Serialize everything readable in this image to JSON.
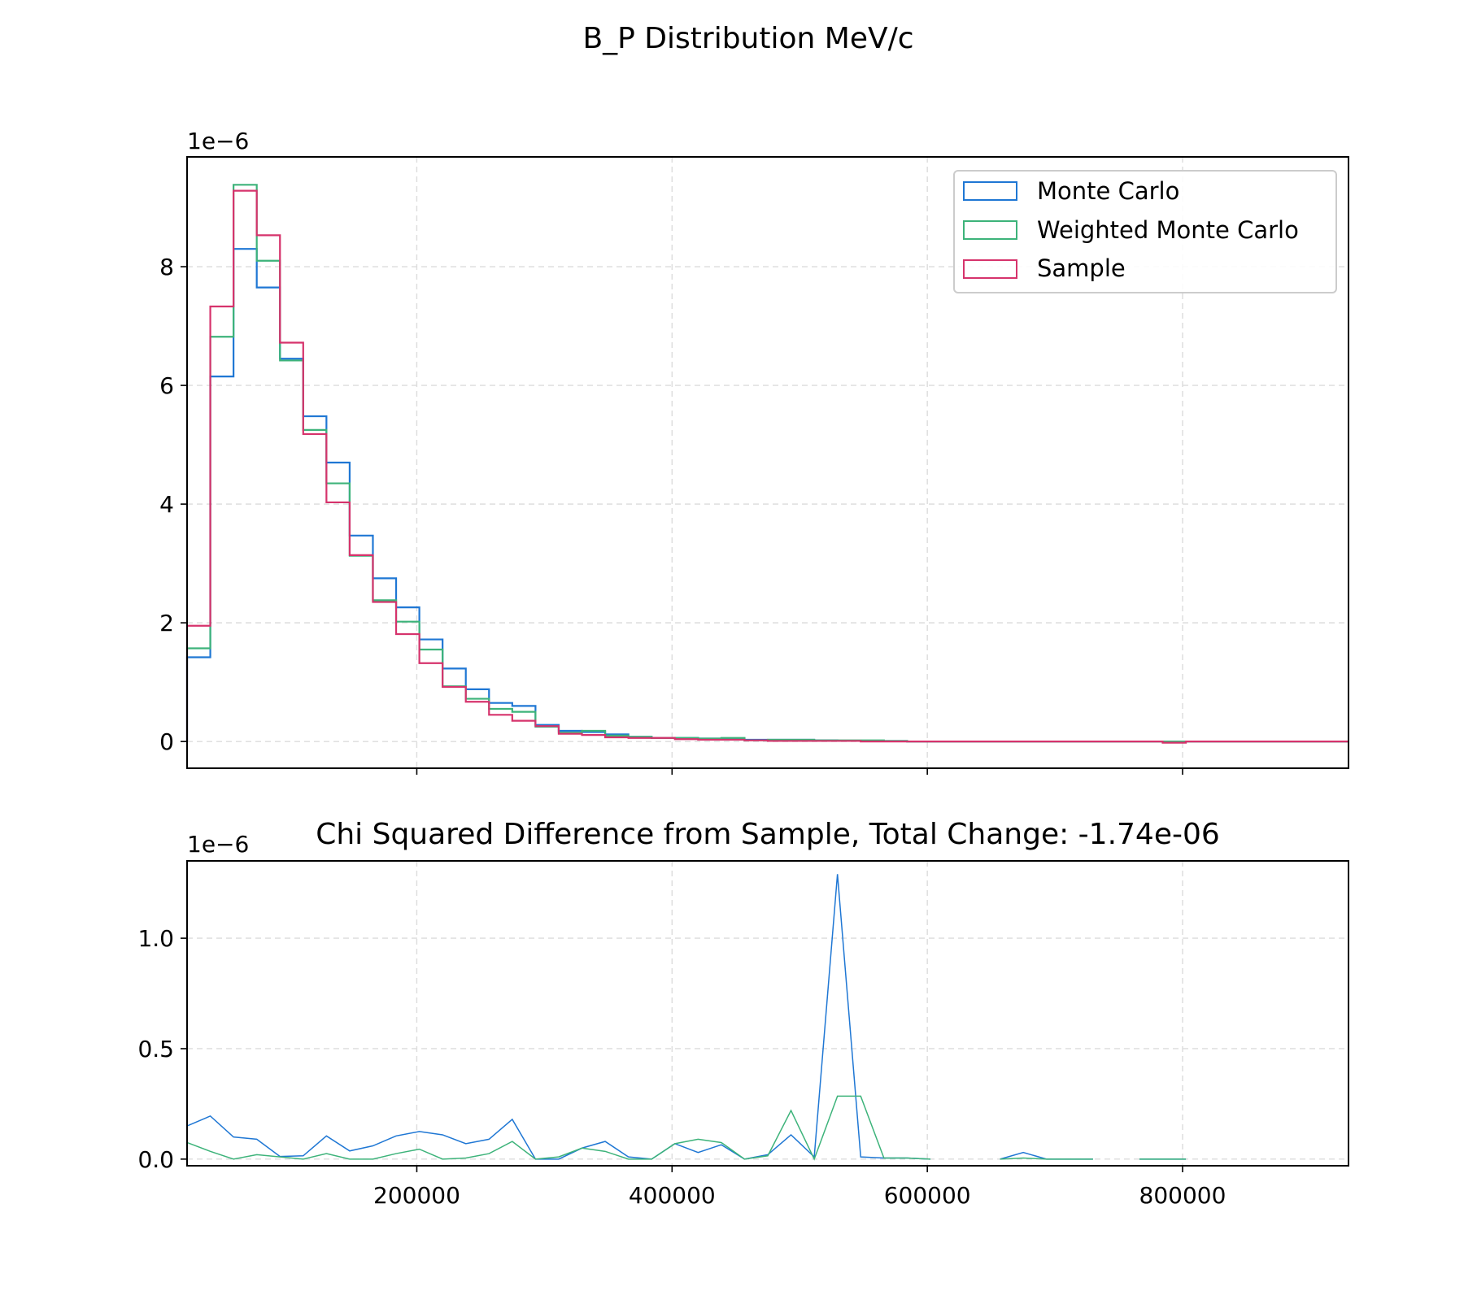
{
  "figure": {
    "suptitle": "B_P Distribution MeV/c"
  },
  "chart_data": [
    {
      "type": "step-histogram",
      "title": "",
      "xlabel": "",
      "ylabel": "",
      "y_multiplier_label": "1e−6",
      "xlim": [
        20000,
        930000
      ],
      "ylim": [
        -0.45,
        9.85
      ],
      "y_ticks": [
        "0",
        "2",
        "4",
        "6",
        "8"
      ],
      "x_tick_values": [
        200000,
        400000,
        600000,
        800000
      ],
      "grid": true,
      "legend_position": "top-right",
      "bin_edges": [
        20000,
        38200,
        56400,
        74600,
        92800,
        111000,
        129200,
        147400,
        165600,
        183800,
        202000,
        220200,
        238400,
        256600,
        274800,
        293000,
        311200,
        329400,
        347600,
        365800,
        384000,
        402200,
        420400,
        438600,
        456800,
        475000,
        493200,
        511400,
        529600,
        547800,
        566000,
        584200,
        602400,
        620600,
        638800,
        657000,
        675200,
        693400,
        711600,
        729800,
        748000,
        766200,
        784400,
        802600,
        820800,
        839000,
        857200,
        875400,
        893600,
        911800,
        930000
      ],
      "series": [
        {
          "name": "Monte Carlo",
          "color": "#1f77d4",
          "values": [
            1.42,
            6.15,
            8.3,
            7.65,
            6.45,
            5.48,
            4.7,
            3.47,
            2.75,
            2.26,
            1.72,
            1.23,
            0.88,
            0.65,
            0.6,
            0.28,
            0.18,
            0.16,
            0.12,
            0.08,
            0.06,
            0.06,
            0.05,
            0.05,
            0.03,
            0.03,
            0.03,
            0.02,
            0.01,
            0.01,
            0.01,
            0.0,
            0.0,
            0.0,
            0.0,
            0.0,
            0.0,
            0.0,
            0.0,
            0.0,
            0.0,
            0.0,
            0.0,
            0.0,
            0.0,
            0.0,
            0.0,
            0.0,
            0.0,
            0.0
          ]
        },
        {
          "name": "Weighted Monte Carlo",
          "color": "#3db37a",
          "values": [
            1.57,
            6.82,
            9.38,
            8.1,
            6.42,
            5.25,
            4.35,
            3.13,
            2.38,
            2.02,
            1.55,
            0.93,
            0.72,
            0.55,
            0.5,
            0.25,
            0.15,
            0.18,
            0.1,
            0.08,
            0.06,
            0.06,
            0.05,
            0.06,
            0.02,
            0.03,
            0.03,
            0.02,
            0.02,
            0.02,
            0.01,
            0.0,
            0.0,
            0.0,
            0.0,
            0.0,
            0.0,
            0.0,
            0.0,
            0.0,
            0.0,
            0.0,
            0.0,
            0.0,
            0.0,
            0.0,
            0.0,
            0.0,
            0.0,
            0.0
          ]
        },
        {
          "name": "Sample",
          "color": "#d6336c",
          "values": [
            1.95,
            7.33,
            9.28,
            8.53,
            6.72,
            5.18,
            4.03,
            3.14,
            2.35,
            1.81,
            1.32,
            0.92,
            0.67,
            0.45,
            0.35,
            0.26,
            0.13,
            0.11,
            0.07,
            0.06,
            0.06,
            0.04,
            0.03,
            0.03,
            0.02,
            0.01,
            0.01,
            0.01,
            0.01,
            0.0,
            0.0,
            0.0,
            0.0,
            0.0,
            0.0,
            0.0,
            0.0,
            0.0,
            0.0,
            0.0,
            0.0,
            0.0,
            -0.02,
            0.0,
            0.0,
            0.0,
            0.0,
            0.0,
            0.0,
            0.0
          ]
        }
      ]
    },
    {
      "type": "line",
      "title": "Chi Squared Difference from Sample, Total Change: -1.74e-06",
      "xlabel": "",
      "ylabel": "",
      "y_multiplier_label": "1e−6",
      "xlim": [
        20000,
        930000
      ],
      "ylim": [
        -0.03,
        1.35
      ],
      "y_tick_values": [
        0.0,
        0.5,
        1.0
      ],
      "y_ticks": [
        "0.0",
        "0.5",
        "1.0"
      ],
      "x_tick_values": [
        200000,
        400000,
        600000,
        800000
      ],
      "x_ticks": [
        "200000",
        "400000",
        "600000",
        "800000"
      ],
      "grid": true,
      "series": [
        {
          "name": "Monte Carlo",
          "color": "#1f77d4",
          "points": [
            [
              [
                20000,
                0.15
              ],
              [
                38200,
                0.195
              ],
              [
                56400,
                0.1
              ],
              [
                74600,
                0.09
              ],
              [
                92800,
                0.012
              ],
              [
                111000,
                0.015
              ],
              [
                129200,
                0.105
              ],
              [
                147400,
                0.037
              ],
              [
                165600,
                0.06
              ],
              [
                183800,
                0.105
              ],
              [
                202000,
                0.125
              ],
              [
                220200,
                0.11
              ],
              [
                238400,
                0.07
              ],
              [
                256600,
                0.09
              ],
              [
                274800,
                0.18
              ],
              [
                293000,
                0.0
              ],
              [
                311200,
                0.0
              ],
              [
                329400,
                0.05
              ],
              [
                347600,
                0.08
              ],
              [
                365800,
                0.01
              ],
              [
                384000,
                0.0
              ],
              [
                402200,
                0.07
              ],
              [
                420400,
                0.03
              ],
              [
                438600,
                0.065
              ],
              [
                456800,
                0.0
              ],
              [
                475000,
                0.02
              ],
              [
                493200,
                0.11
              ],
              [
                511400,
                0.01
              ],
              [
                529600,
                1.29
              ],
              [
                547800,
                0.01
              ],
              [
                566000,
                0.005
              ],
              [
                584200,
                0.005
              ],
              [
                602400,
                0.0
              ]
            ],
            [
              [
                657000,
                0.0
              ],
              [
                675200,
                0.03
              ],
              [
                693400,
                0.0
              ],
              [
                711600,
                0.0
              ],
              [
                729800,
                0.0
              ]
            ],
            [
              [
                766200,
                0.0
              ],
              [
                784400,
                0.0
              ],
              [
                802600,
                0.0
              ]
            ]
          ]
        },
        {
          "name": "Weighted Monte Carlo",
          "color": "#3db37a",
          "points": [
            [
              [
                20000,
                0.075
              ],
              [
                38200,
                0.035
              ],
              [
                56400,
                0.0
              ],
              [
                74600,
                0.02
              ],
              [
                92800,
                0.01
              ],
              [
                111000,
                0.0
              ],
              [
                129200,
                0.025
              ],
              [
                147400,
                0.0
              ],
              [
                165600,
                0.0
              ],
              [
                183800,
                0.025
              ],
              [
                202000,
                0.045
              ],
              [
                220200,
                0.0
              ],
              [
                238400,
                0.005
              ],
              [
                256600,
                0.025
              ],
              [
                274800,
                0.08
              ],
              [
                293000,
                0.0
              ],
              [
                311200,
                0.01
              ],
              [
                329400,
                0.05
              ],
              [
                347600,
                0.035
              ],
              [
                365800,
                0.0
              ],
              [
                384000,
                0.0
              ],
              [
                402200,
                0.07
              ],
              [
                420400,
                0.09
              ],
              [
                438600,
                0.075
              ],
              [
                456800,
                0.0
              ],
              [
                475000,
                0.015
              ],
              [
                493200,
                0.22
              ],
              [
                511400,
                0.0
              ],
              [
                529600,
                0.285
              ],
              [
                547800,
                0.285
              ],
              [
                566000,
                0.005
              ],
              [
                584200,
                0.005
              ],
              [
                602400,
                0.0
              ]
            ],
            [
              [
                657000,
                0.0
              ],
              [
                675200,
                0.005
              ],
              [
                693400,
                0.0
              ],
              [
                711600,
                0.0
              ],
              [
                729800,
                0.0
              ]
            ],
            [
              [
                766200,
                0.0
              ],
              [
                784400,
                0.0
              ],
              [
                802600,
                0.0
              ]
            ]
          ]
        }
      ]
    }
  ]
}
